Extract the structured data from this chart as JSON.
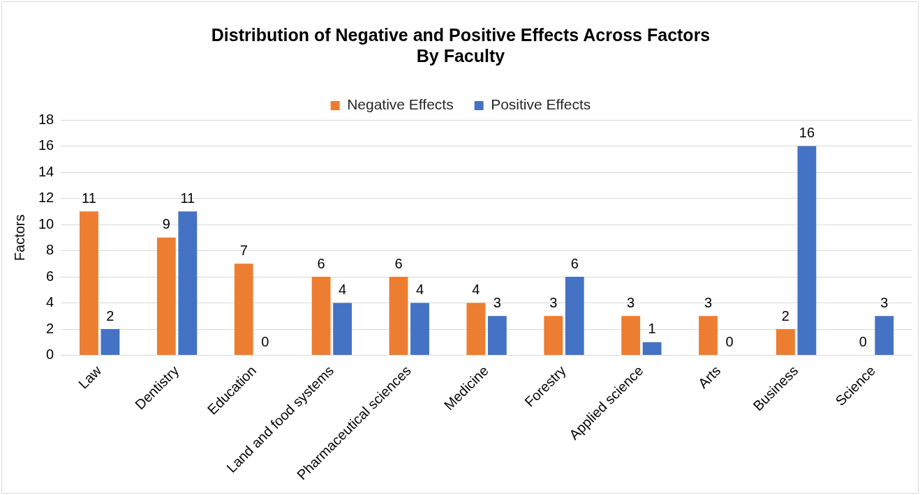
{
  "chart_data": {
    "type": "bar",
    "title": [
      "Distribution of Negative and Positive Effects Across Factors",
      "By Faculty"
    ],
    "ylabel": "Factors",
    "categories": [
      "Law",
      "Dentistry",
      "Education",
      "Land and food systems",
      "Pharmaceutical sciences",
      "Medicine",
      "Forestry",
      "Applied science",
      "Arts",
      "Business",
      "Science"
    ],
    "series": [
      {
        "name": "Negative Effects",
        "color": "#ed7d31",
        "values": [
          11,
          9,
          7,
          6,
          6,
          4,
          3,
          3,
          3,
          2,
          0
        ]
      },
      {
        "name": "Positive Effects",
        "color": "#4472c4",
        "values": [
          2,
          11,
          0,
          4,
          4,
          3,
          6,
          1,
          0,
          16,
          3
        ]
      }
    ],
    "ylim": [
      0,
      18
    ],
    "yticks": [
      0,
      2,
      4,
      6,
      8,
      10,
      12,
      14,
      16,
      18
    ],
    "grid": "y",
    "legend": "top",
    "data_labels": true
  }
}
